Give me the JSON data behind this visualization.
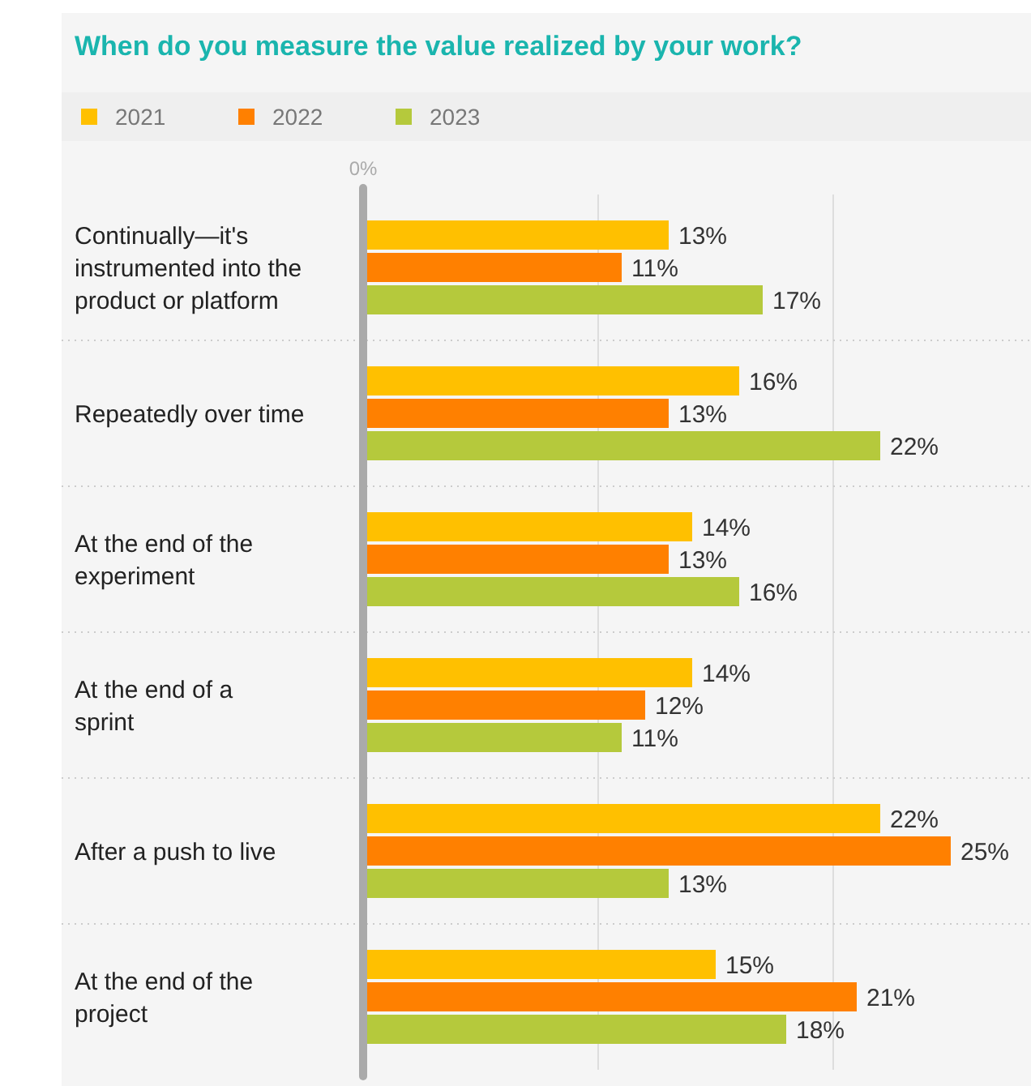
{
  "chart_data": {
    "type": "bar",
    "orientation": "horizontal",
    "title": "When do you measure the value realized by your work?",
    "categories": [
      "Continually—it's instrumented into the product or platform",
      "Repeatedly over time",
      "At the end of the experiment",
      "At the end of a sprint",
      "After a push to live",
      "At the end of the project"
    ],
    "series": [
      {
        "name": "2021",
        "color": "#ffc000",
        "values": [
          13,
          16,
          14,
          14,
          22,
          15
        ],
        "value_labels": [
          "13%",
          "16%",
          "14%",
          "14%",
          "22%",
          "15%"
        ]
      },
      {
        "name": "2022",
        "color": "#ff8000",
        "values": [
          11,
          13,
          13,
          12,
          25,
          21
        ],
        "value_labels": [
          "11%",
          "13%",
          "13%",
          "12%",
          "25%",
          "21%"
        ]
      },
      {
        "name": "2023",
        "color": "#b5c93c",
        "values": [
          17,
          22,
          16,
          11,
          13,
          18
        ],
        "value_labels": [
          "17%",
          "22%",
          "16%",
          "11%",
          "13%",
          "18%"
        ]
      }
    ],
    "annotations": [
      "0%"
    ],
    "ref_lines": [
      {
        "axis": "x",
        "value": 10,
        "color": "#dddddd"
      },
      {
        "axis": "x",
        "value": 20,
        "color": "#dddddd"
      }
    ],
    "legend": "top left"
  }
}
